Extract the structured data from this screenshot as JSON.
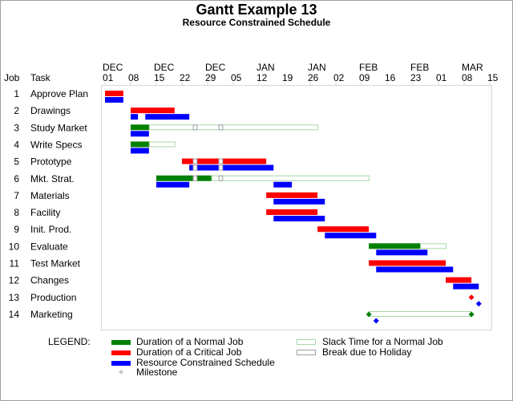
{
  "title": "Gantt Example 13",
  "subtitle": "Resource Constrained Schedule",
  "columns": {
    "job": "Job",
    "task": "Task"
  },
  "colors": {
    "normal": "#008000",
    "critical": "#ff0000",
    "resource": "#0000ff",
    "slack": "#a6d8a6",
    "holiday": "#a0a0a0",
    "milestone_legend": "#c8c8c8",
    "frame": "#d8d8d8"
  },
  "chart_data": {
    "type": "gantt",
    "title": "Gantt Example 13",
    "subtitle": "Resource Constrained Schedule",
    "x_unit": "days since DEC 01",
    "xlim": [
      0,
      105
    ],
    "ticks": [
      {
        "day": 0,
        "month": "DEC",
        "label": "01"
      },
      {
        "day": 7,
        "month": "",
        "label": "08"
      },
      {
        "day": 14,
        "month": "DEC",
        "label": "15"
      },
      {
        "day": 21,
        "month": "",
        "label": "22"
      },
      {
        "day": 28,
        "month": "DEC",
        "label": "29"
      },
      {
        "day": 35,
        "month": "",
        "label": "05"
      },
      {
        "day": 42,
        "month": "JAN",
        "label": "12"
      },
      {
        "day": 49,
        "month": "",
        "label": "19"
      },
      {
        "day": 56,
        "month": "JAN",
        "label": "26"
      },
      {
        "day": 63,
        "month": "",
        "label": "02"
      },
      {
        "day": 70,
        "month": "FEB",
        "label": "09"
      },
      {
        "day": 77,
        "month": "",
        "label": "16"
      },
      {
        "day": 84,
        "month": "FEB",
        "label": "23"
      },
      {
        "day": 91,
        "month": "",
        "label": "01"
      },
      {
        "day": 98,
        "month": "MAR",
        "label": "08"
      },
      {
        "day": 105,
        "month": "",
        "label": "15"
      }
    ],
    "holidays": [
      [
        24,
        25
      ],
      [
        31,
        32
      ]
    ],
    "tasks": [
      {
        "job": "1",
        "task": "Approve Plan",
        "kind": "critical",
        "sched": [
          [
            0,
            5
          ]
        ],
        "slack": null,
        "resource": [
          [
            0,
            5
          ]
        ]
      },
      {
        "job": "2",
        "task": "Drawings",
        "kind": "critical",
        "sched": [
          [
            7,
            19
          ]
        ],
        "slack": null,
        "resource": [
          [
            7,
            9
          ],
          [
            11,
            23
          ]
        ]
      },
      {
        "job": "3",
        "task": "Study Market",
        "kind": "normal",
        "sched": [
          [
            7,
            12
          ]
        ],
        "slack": [
          12,
          58
        ],
        "resource": [
          [
            7,
            12
          ]
        ]
      },
      {
        "job": "4",
        "task": "Write Specs",
        "kind": "normal",
        "sched": [
          [
            7,
            12
          ]
        ],
        "slack": [
          12,
          19
        ],
        "resource": [
          [
            7,
            12
          ]
        ]
      },
      {
        "job": "5",
        "task": "Prototype",
        "kind": "critical",
        "sched": [
          [
            21,
            44
          ]
        ],
        "slack": null,
        "resource": [
          [
            23,
            46
          ]
        ]
      },
      {
        "job": "6",
        "task": "Mkt. Strat.",
        "kind": "normal",
        "sched": [
          [
            14,
            29
          ]
        ],
        "slack": [
          29,
          72
        ],
        "resource": [
          [
            14,
            23
          ],
          [
            46,
            51
          ]
        ]
      },
      {
        "job": "7",
        "task": "Materials",
        "kind": "critical",
        "sched": [
          [
            44,
            58
          ]
        ],
        "slack": null,
        "resource": [
          [
            46,
            60
          ]
        ]
      },
      {
        "job": "8",
        "task": "Facility",
        "kind": "critical",
        "sched": [
          [
            44,
            58
          ]
        ],
        "slack": null,
        "resource": [
          [
            46,
            60
          ]
        ]
      },
      {
        "job": "9",
        "task": "Init. Prod.",
        "kind": "critical",
        "sched": [
          [
            58,
            72
          ]
        ],
        "slack": null,
        "resource": [
          [
            60,
            74
          ]
        ]
      },
      {
        "job": "10",
        "task": "Evaluate",
        "kind": "normal",
        "sched": [
          [
            72,
            86
          ]
        ],
        "slack": [
          86,
          93
        ],
        "resource": [
          [
            74,
            88
          ]
        ]
      },
      {
        "job": "11",
        "task": "Test Market",
        "kind": "critical",
        "sched": [
          [
            72,
            93
          ]
        ],
        "slack": null,
        "resource": [
          [
            74,
            95
          ]
        ]
      },
      {
        "job": "12",
        "task": "Changes",
        "kind": "critical",
        "sched": [
          [
            93,
            100
          ]
        ],
        "slack": null,
        "resource": [
          [
            95,
            102
          ]
        ]
      },
      {
        "job": "13",
        "task": "Production",
        "kind": "critical",
        "milestone": 100,
        "slack": null,
        "resource_milestone": 102
      },
      {
        "job": "14",
        "task": "Marketing",
        "kind": "normal",
        "milestone": 72,
        "milestone_end": 100,
        "slack": [
          72,
          100
        ],
        "resource_milestone": 74
      }
    ]
  },
  "legend": {
    "title": "LEGEND:",
    "items": [
      {
        "label": "Duration of a Normal Job",
        "kind": "normal"
      },
      {
        "label": "Duration of a Critical Job",
        "kind": "critical"
      },
      {
        "label": "Resource Constrained Schedule",
        "kind": "resource"
      },
      {
        "label": "Milestone",
        "kind": "milestone"
      },
      {
        "label": "Slack Time for a Normal Job",
        "kind": "slack"
      },
      {
        "label": "Break due to Holiday",
        "kind": "holiday"
      }
    ]
  }
}
